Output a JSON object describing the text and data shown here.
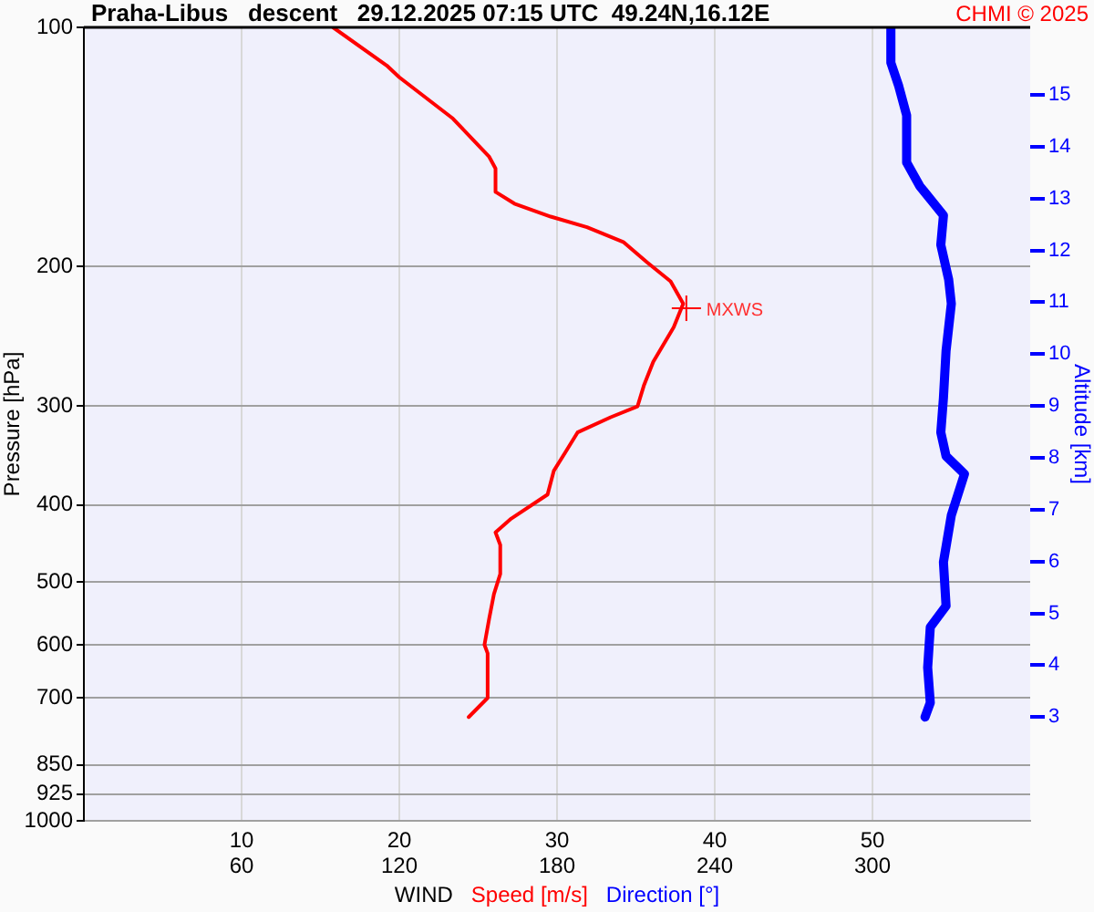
{
  "chart_data": {
    "type": "line",
    "title": "Praha-Libus   descent   29.12.2025 07:15 UTC  49.24N,16.12E",
    "xlabel": "WIND",
    "ylabel": "Pressure [hPa]",
    "y2label": "Altitude [km]",
    "xlim": [
      0,
      60
    ],
    "xticks": [
      10,
      20,
      30,
      40,
      50
    ],
    "x2lim": [
      0,
      360
    ],
    "x2ticks": [
      60,
      120,
      180,
      240,
      300
    ],
    "ylim": [
      1000,
      100
    ],
    "yticks": [
      100,
      200,
      300,
      400,
      500,
      600,
      700,
      850,
      925,
      1000
    ],
    "y2lim": [
      1.0,
      16.3
    ],
    "y2ticks": [
      3,
      4,
      5,
      6,
      7,
      8,
      9,
      10,
      11,
      12,
      13,
      14,
      15
    ],
    "log": "y",
    "grid": true,
    "legend": "bottom",
    "marker": "none",
    "line_style": "solid",
    "series": [
      {
        "name": "Speed [m/s]",
        "color": "#ff0000",
        "x": [
          15.8,
          19.2,
          20.0,
          23.4,
          25.7,
          26.1,
          26.1,
          27.3,
          29.6,
          31.9,
          34.2,
          35.7,
          37.2,
          38.0,
          37.4,
          36.1,
          35.5,
          35.1,
          33.4,
          31.3,
          30.5,
          29.8,
          29.4,
          27.1,
          26.1,
          26.4,
          26.4,
          26.0,
          25.7,
          25.4,
          25.6,
          25.6,
          24.4
        ],
        "values": [
          100,
          111.7,
          115.6,
          130.3,
          145.6,
          150.6,
          161.2,
          166.8,
          173.2,
          178.6,
          186.4,
          197.7,
          209,
          223,
          238.7,
          264,
          283,
          300.5,
          310,
          324,
          344,
          362,
          388,
          416,
          433,
          449,
          488.5,
          518,
          556,
          600,
          615,
          700,
          740
        ]
      },
      {
        "name": "Direction [°]",
        "color": "#0000ff",
        "axis": "x2",
        "x": [
          307,
          307,
          310,
          313,
          313,
          318,
          327,
          326,
          329,
          330,
          328,
          327,
          326,
          328,
          335,
          330,
          327,
          328,
          322,
          321,
          322,
          320
        ],
        "values": [
          100,
          110.8,
          118.6,
          129.1,
          148,
          158.5,
          172.6,
          188,
          208,
          223,
          255.6,
          293,
          324,
          347,
          365.5,
          412,
          472,
          536,
          570,
          641,
          710,
          740
        ]
      }
    ],
    "annotations": [
      {
        "text": "MXWS",
        "x": 38.2,
        "y": 226
      },
      "CHMI © 2025"
    ]
  }
}
